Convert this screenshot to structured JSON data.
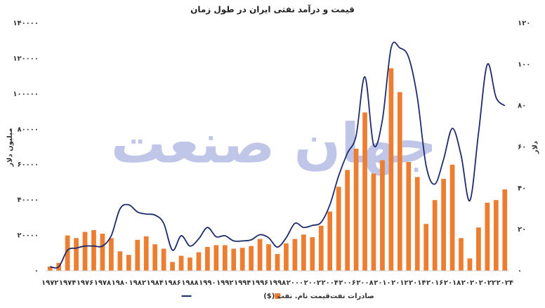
{
  "chart_data": {
    "type": "bar",
    "title": "قیمت و درآمد نفتی ایران در طول زمان",
    "watermark": "جهان صنعت",
    "y_label": "میلیون دلار",
    "y2_label": "دلار",
    "categories": [
      "۱۹۷۲",
      null,
      "۱۹۷۴",
      null,
      "۱۹۷۶",
      null,
      "۱۹۷۸",
      null,
      "۱۹۸۰",
      null,
      "۱۹۸۲",
      null,
      "۱۹۸۴",
      null,
      "۱۹۸۶",
      null,
      "۱۹۸۸",
      null,
      "۱۹۹۰",
      null,
      "۱۹۹۲",
      null,
      "۱۹۹۴",
      null,
      "۱۹۹۶",
      null,
      "۱۹۹۸",
      null,
      "۲۰۰۰",
      null,
      "۲۰۰۲",
      null,
      "۲۰۰۴",
      null,
      "۲۰۰۶",
      null,
      "۲۰۰۸",
      null,
      "۲۰۱۰",
      null,
      "۲۰۱۲",
      null,
      "۲۰۱۴",
      null,
      "۲۰۱۶",
      null,
      "۲۰۱۸",
      null,
      "۲۰۲۰",
      null,
      "۲۰۲۲",
      null,
      "۲۰۲۴"
    ],
    "series": [
      {
        "name": "صادرات نفت",
        "type": "bar",
        "color": "#ed7d31",
        "values": [
          2400,
          4500,
          20000,
          18500,
          22000,
          23000,
          21000,
          18500,
          11000,
          9000,
          17500,
          19500,
          15000,
          12500,
          5000,
          8500,
          7500,
          10500,
          13500,
          14500,
          14500,
          12500,
          13000,
          14000,
          18000,
          15000,
          9500,
          15500,
          18000,
          20500,
          19000,
          25500,
          33500,
          47500,
          57000,
          69000,
          89500,
          55000,
          62500,
          114500,
          101000,
          61500,
          53000,
          26500,
          40000,
          52000,
          60000,
          18500,
          7000,
          24500,
          38500,
          40000,
          46000
        ]
      },
      {
        "name": "قیمت نام. نفت ($)",
        "type": "line",
        "axis": "y2",
        "color": "#1f2a6b",
        "values": [
          2,
          2,
          10,
          11,
          12,
          12,
          12,
          17,
          30,
          32,
          28.5,
          27.5,
          27,
          23,
          10,
          17,
          12,
          15.5,
          21,
          16.5,
          17,
          14.5,
          14.5,
          15,
          17.5,
          16,
          11.5,
          16,
          23,
          21,
          22,
          23.5,
          32,
          46,
          57,
          65.5,
          94,
          61,
          73,
          108,
          108,
          103.5,
          84,
          51,
          42,
          54,
          69,
          56,
          34,
          67,
          100,
          84,
          80
        ]
      }
    ],
    "ylim": [
      0,
      140000
    ],
    "yticks": [
      {
        "value": 0,
        "label": "۰"
      },
      {
        "value": 20000,
        "label": "۲۰۰۰۰"
      },
      {
        "value": 40000,
        "label": "۴۰۰۰۰"
      },
      {
        "value": 60000,
        "label": "۶۰۰۰۰"
      },
      {
        "value": 80000,
        "label": "۸۰۰۰۰"
      },
      {
        "value": 100000,
        "label": "۱۰۰۰۰۰"
      },
      {
        "value": 120000,
        "label": "۱۲۰۰۰۰"
      },
      {
        "value": 140000,
        "label": "۱۴۰۰۰۰"
      }
    ],
    "y2lim": [
      0,
      120
    ],
    "y2ticks": [
      {
        "value": 0,
        "label": "۰"
      },
      {
        "value": 20,
        "label": "۲۰"
      },
      {
        "value": 40,
        "label": "۴۰"
      },
      {
        "value": 60,
        "label": "۶۰"
      },
      {
        "value": 80,
        "label": "۸۰"
      },
      {
        "value": 100,
        "label": "۱۰۰"
      },
      {
        "value": 120,
        "label": "۱۲۰"
      }
    ],
    "grid": false,
    "legend": "bottom"
  }
}
